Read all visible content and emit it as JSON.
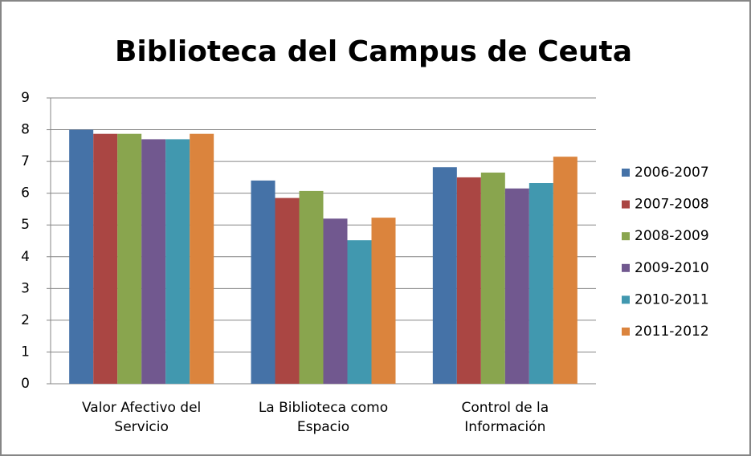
{
  "chart_data": {
    "type": "bar",
    "title": "Biblioteca del Campus de Ceuta",
    "categories": [
      "Valor Afectivo del Servicio",
      "La Biblioteca como Espacio",
      "Control de la Información"
    ],
    "series": [
      {
        "name": "2006-2007",
        "color": "#4572a7",
        "values": [
          8.0,
          6.4,
          6.82
        ]
      },
      {
        "name": "2007-2008",
        "color": "#aa4643",
        "values": [
          7.87,
          5.85,
          6.5
        ]
      },
      {
        "name": "2008-2009",
        "color": "#89a54e",
        "values": [
          7.87,
          6.07,
          6.65
        ]
      },
      {
        "name": "2009-2010",
        "color": "#71588f",
        "values": [
          7.7,
          5.2,
          6.15
        ]
      },
      {
        "name": "2010-2011",
        "color": "#4198af",
        "values": [
          7.7,
          4.52,
          6.32
        ]
      },
      {
        "name": "2011-2012",
        "color": "#db843d",
        "values": [
          7.87,
          5.23,
          7.15
        ]
      }
    ],
    "ylim": [
      0,
      9
    ],
    "yticks": [
      0,
      1,
      2,
      3,
      4,
      5,
      6,
      7,
      8,
      9
    ],
    "grid": true,
    "legend": "right"
  }
}
